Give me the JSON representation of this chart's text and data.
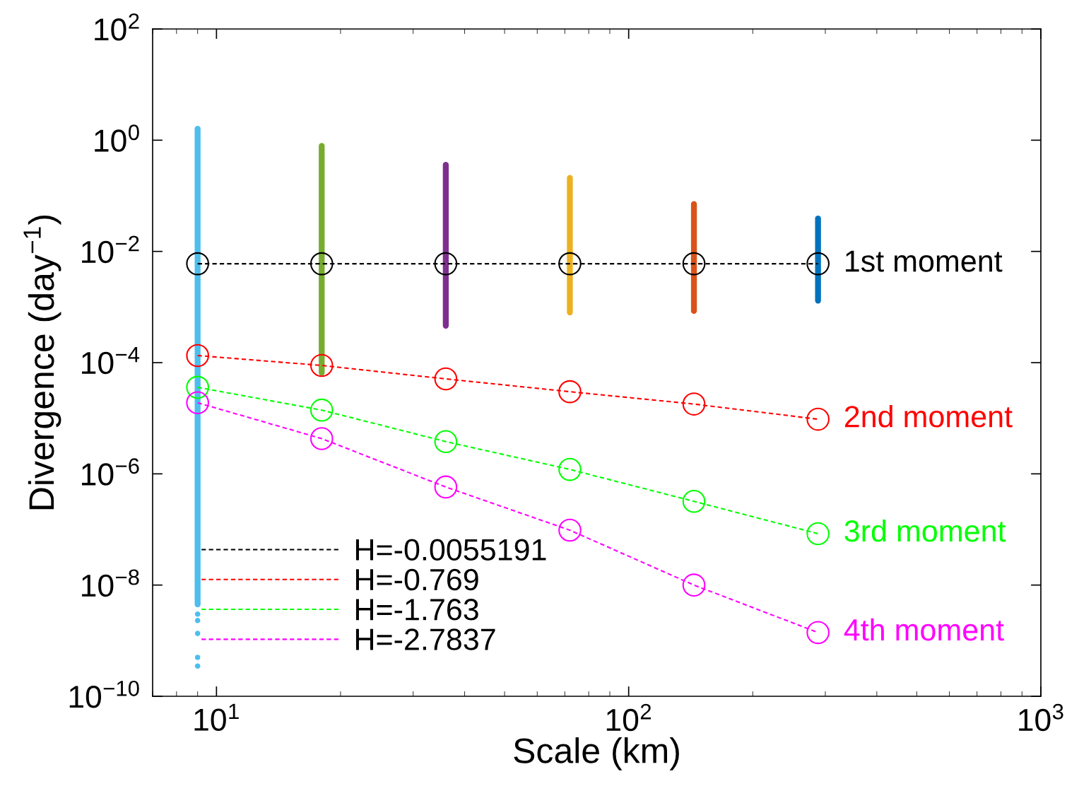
{
  "chart_data": {
    "type": "line",
    "xlabel": "Scale (km)",
    "ylabel": "Divergence (day$^{−1}$)",
    "log": "xy",
    "xlim": [
      7,
      1000
    ],
    "ylim": [
      1e-10,
      100
    ],
    "xticks": [
      {
        "value": 10,
        "label": "10$^{1}$"
      },
      {
        "value": 100,
        "label": "10$^{2}$"
      },
      {
        "value": 1000,
        "label": "10$^{3}$"
      }
    ],
    "yticks": [
      {
        "value": 1e-10,
        "label": "10$^{−10}$"
      },
      {
        "value": 1e-08,
        "label": "10$^{−8}$"
      },
      {
        "value": 1e-06,
        "label": "10$^{−6}$"
      },
      {
        "value": 0.0001,
        "label": "10$^{−4}$"
      },
      {
        "value": 0.01,
        "label": "10$^{−2}$"
      },
      {
        "value": 1,
        "label": "10$^{0}$"
      },
      {
        "value": 100,
        "label": "10$^{2}$"
      }
    ],
    "grid": false,
    "legend": "bottom left",
    "series": [
      {
        "color": "#4dbeee",
        "x": [
          9,
          9
        ],
        "values": [
          1.6,
          4.5e-09
        ],
        "marker": "none",
        "line_style": "solid"
      },
      {
        "type": "scatter",
        "color": "#4dbeee",
        "x": [
          9,
          9,
          9,
          9,
          9
        ],
        "values": [
          3e-09,
          2.3e-09,
          1.35e-09,
          5e-10,
          3.5e-10
        ],
        "marker": "circle"
      },
      {
        "color": "#77ac30",
        "x": [
          18,
          18
        ],
        "values": [
          0.79,
          6.6e-05
        ],
        "marker": "none",
        "line_style": "solid"
      },
      {
        "color": "#7e2f8e",
        "x": [
          36,
          36
        ],
        "values": [
          0.36,
          0.00046
        ],
        "marker": "none",
        "line_style": "solid"
      },
      {
        "color": "#edb120",
        "x": [
          72,
          72
        ],
        "values": [
          0.21,
          0.0008
        ],
        "marker": "none",
        "line_style": "solid"
      },
      {
        "color": "#d95319",
        "x": [
          144,
          144
        ],
        "values": [
          0.071,
          0.00085
        ],
        "marker": "none",
        "line_style": "solid"
      },
      {
        "color": "#0072bd",
        "x": [
          288,
          288
        ],
        "values": [
          0.039,
          0.0013
        ],
        "marker": "none",
        "line_style": "solid"
      },
      {
        "name": "H=-0.0055191",
        "color": "#000000",
        "x": [
          9,
          18,
          36,
          72,
          144,
          288
        ],
        "values": [
          0.006,
          0.006,
          0.006,
          0.006,
          0.006,
          0.006
        ],
        "marker": "circle",
        "line_style": "dashed"
      },
      {
        "name": "H=-0.769",
        "color": "#ff0000",
        "x": [
          9,
          18,
          36,
          72,
          144,
          288
        ],
        "values": [
          0.000134,
          8.9e-05,
          5.1e-05,
          3e-05,
          1.8e-05,
          9.6e-06
        ],
        "marker": "circle",
        "line_style": "dashed"
      },
      {
        "name": "H=-1.763",
        "color": "#00ff00",
        "x": [
          9,
          18,
          36,
          72,
          144,
          288
        ],
        "values": [
          3.6e-05,
          1.4e-05,
          3.8e-06,
          1.2e-06,
          3.2e-07,
          8.4e-08
        ],
        "marker": "circle",
        "line_style": "dashed"
      },
      {
        "name": "H=-2.7837",
        "color": "#ff00ff",
        "x": [
          9,
          18,
          36,
          72,
          144,
          288
        ],
        "values": [
          1.9e-05,
          4.3e-06,
          5.8e-07,
          9.7e-08,
          1e-08,
          1.4e-09
        ],
        "marker": "circle",
        "line_style": "dashed"
      }
    ],
    "annotations": [
      "1st moment",
      "2nd moment",
      "3rd moment",
      "4th moment"
    ]
  }
}
